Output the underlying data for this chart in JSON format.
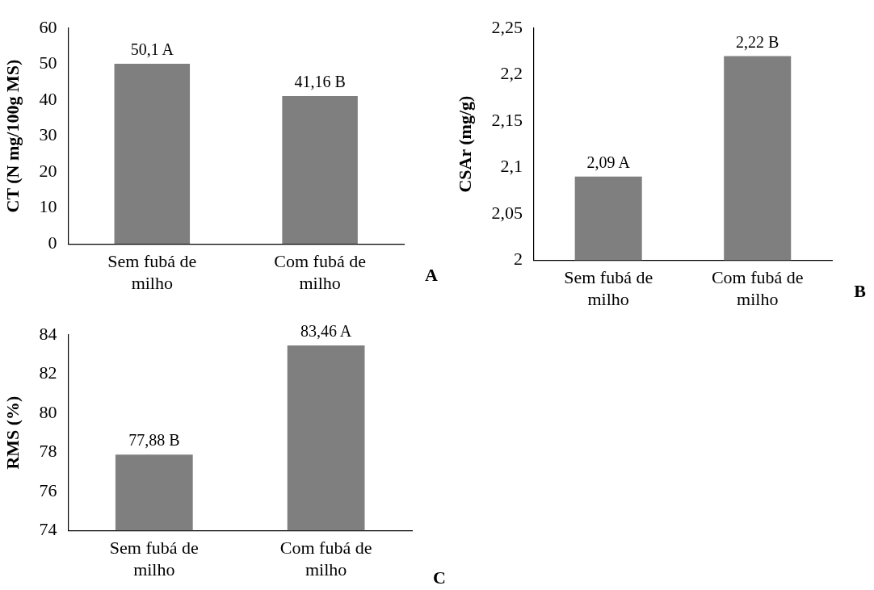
{
  "chart_data": [
    {
      "type": "bar",
      "ylabel": "CT (N mg/100g MS)",
      "categories": [
        "Sem fubá de milho",
        "Com fubá de milho"
      ],
      "values": [
        50.1,
        41.16
      ],
      "value_labels": [
        "50,1 A",
        "41,16 B"
      ],
      "color": "#7f7f7f",
      "ylim": [
        0,
        60
      ],
      "yticks": [
        0,
        10,
        20,
        30,
        40,
        50,
        60
      ],
      "grid": false,
      "legend": false,
      "annotations": [
        "A"
      ]
    },
    {
      "type": "bar",
      "ylabel": "CSAr (mg/g)",
      "categories": [
        "Sem fubá de milho",
        "Com fubá de milho"
      ],
      "values": [
        2.09,
        2.22
      ],
      "value_labels": [
        "2,09 A",
        "2,22 B"
      ],
      "color": "#7f7f7f",
      "ylim": [
        2,
        2.25
      ],
      "yticks": [
        2,
        {
          "value": 2.05,
          "label": "2,05"
        },
        {
          "value": 2.1,
          "label": "2,1"
        },
        {
          "value": 2.15,
          "label": "2,15"
        },
        {
          "value": 2.2,
          "label": "2,2"
        },
        {
          "value": 2.25,
          "label": "2,25"
        }
      ],
      "grid": false,
      "legend": false,
      "annotations": [
        "B"
      ]
    },
    {
      "type": "bar",
      "ylabel": "RMS (%)",
      "categories": [
        "Sem fubá de milho",
        "Com fubá de milho"
      ],
      "values": [
        77.88,
        83.46
      ],
      "value_labels": [
        "77,88 B",
        "83,46 A"
      ],
      "color": "#7f7f7f",
      "ylim": [
        74,
        84
      ],
      "yticks": [
        74,
        76,
        78,
        80,
        82,
        84
      ],
      "grid": false,
      "legend": false,
      "annotations": [
        "C"
      ]
    }
  ]
}
